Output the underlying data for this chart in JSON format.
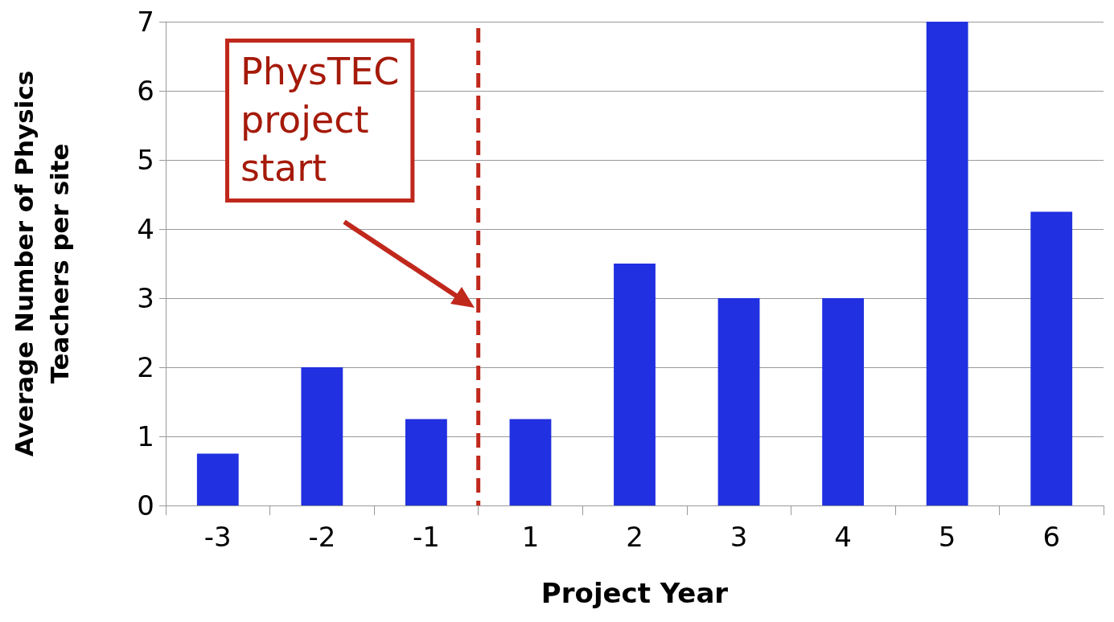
{
  "chart_data": {
    "type": "bar",
    "xlabel": "Project Year",
    "ylabel": "Average Number of Physics\nTeachers per site",
    "categories": [
      "-3",
      "-2",
      "-1",
      "1",
      "2",
      "3",
      "4",
      "5",
      "6"
    ],
    "values": [
      0.75,
      2,
      1.25,
      1.25,
      3.5,
      3,
      3,
      7,
      4.25
    ],
    "color": "#2130e0",
    "ylim": [
      0,
      7
    ],
    "yticks": [
      0,
      1,
      2,
      3,
      4,
      5,
      6,
      7
    ],
    "grid": "y",
    "ref_lines": [
      {
        "axis": "x",
        "value": "1",
        "label": "PhysTEC project start",
        "color": "#c0281c",
        "line_style": "dashed"
      }
    ]
  }
}
